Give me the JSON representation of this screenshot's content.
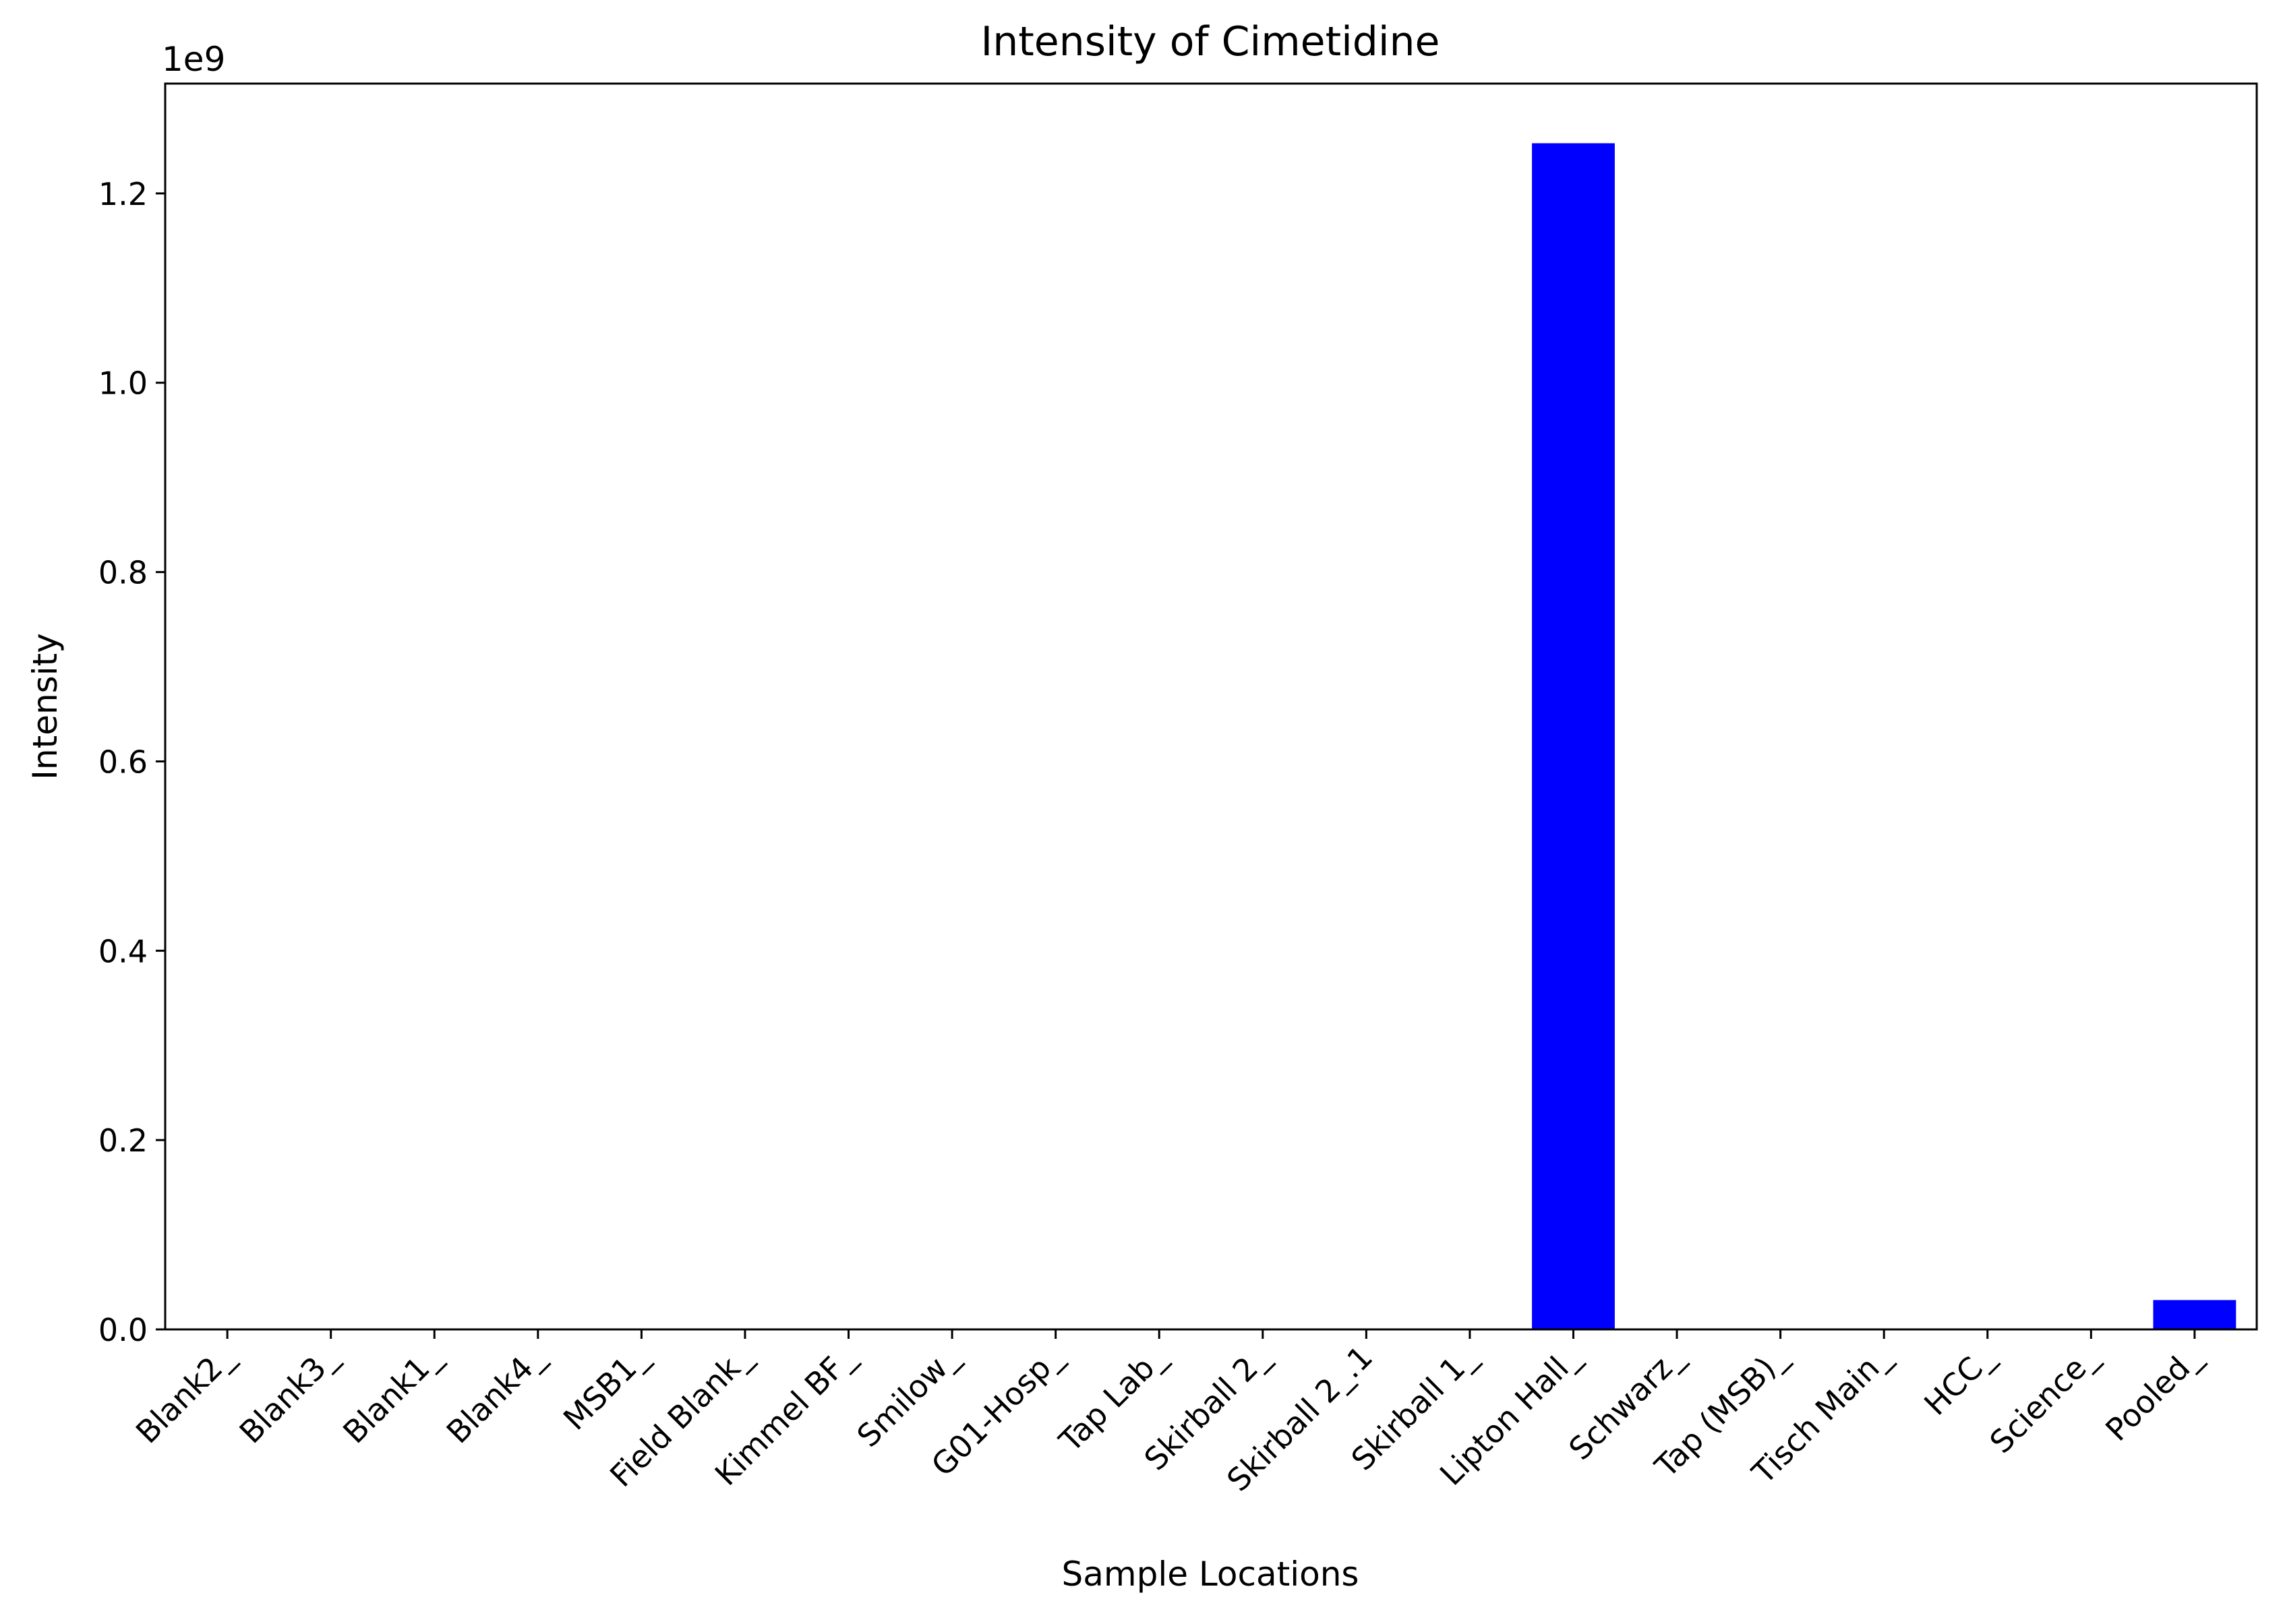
{
  "chart_data": {
    "type": "bar",
    "title": "Intensity of Cimetidine",
    "xlabel": "Sample Locations",
    "ylabel": "Intensity",
    "y_offset_label": "1e9",
    "categories": [
      "Blank2_",
      "Blank3_",
      "Blank1_",
      "Blank4_",
      "MSB1_",
      "Field Blank_",
      "Kimmel BF_",
      "Smilow_",
      "G01-Hosp_",
      "Tap Lab_",
      "Skirball 2_",
      "Skirball 2_.1",
      "Skirball 1_",
      "Lipton Hall_",
      "Schwarz_",
      "Tap (MSB)_",
      "Tisch Main_",
      "HCC_",
      "Science_",
      "Pooled_"
    ],
    "values": [
      0,
      0,
      0,
      0,
      0,
      0,
      0,
      0,
      0,
      0,
      0,
      0,
      0,
      1253000000,
      0,
      0,
      0,
      0,
      0,
      31000000
    ],
    "ylim": [
      0,
      1316000000
    ],
    "yticks": [
      0,
      200000000,
      400000000,
      600000000,
      800000000,
      1000000000,
      1200000000
    ],
    "ytick_labels": [
      "0.0",
      "0.2",
      "0.4",
      "0.6",
      "0.8",
      "1.0",
      "1.2"
    ],
    "bar_color": "#0000ff",
    "grid": false,
    "legend": "none"
  }
}
